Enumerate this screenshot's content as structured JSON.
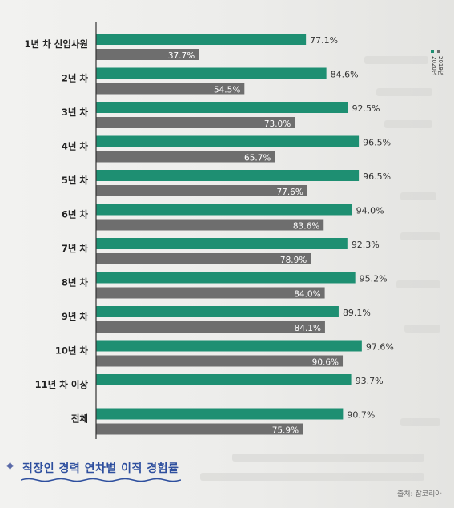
{
  "chart_data": {
    "type": "bar",
    "orientation": "horizontal",
    "categories": [
      "1년 차 신입사원",
      "2년 차",
      "3년 차",
      "4년 차",
      "5년 차",
      "6년 차",
      "7년 차",
      "8년 차",
      "9년 차",
      "10년 차",
      "11년 차 이상",
      "전체"
    ],
    "series": [
      {
        "name": "2020년",
        "color": "#1e8f72",
        "values": [
          77.1,
          84.6,
          92.5,
          96.5,
          96.5,
          94.0,
          92.3,
          95.2,
          89.1,
          97.6,
          93.7,
          90.7
        ],
        "labels": [
          "77.1%",
          "84.6%",
          "92.5%",
          "96.5%",
          "96.5%",
          "94.0%",
          "92.3%",
          "95.2%",
          "89.1%",
          "97.6%",
          "93.7%",
          "90.7%"
        ]
      },
      {
        "name": "2019년",
        "color": "#6e6e6e",
        "values": [
          37.7,
          54.5,
          73.0,
          65.7,
          77.6,
          83.6,
          78.9,
          84.0,
          84.1,
          90.6,
          null,
          75.9
        ],
        "labels": [
          "37.7%",
          "54.5%",
          "73.0%",
          "65.7%",
          "77.6%",
          "83.6%",
          "78.9%",
          "84.0%",
          "84.1%",
          "90.6%",
          "",
          "75.9%"
        ]
      }
    ],
    "xlim": [
      0,
      100
    ],
    "legend_position": "top-right"
  },
  "caption": {
    "title": "직장인 경력 연차별 이직 경험률",
    "source": "출처: 잡코리아"
  }
}
